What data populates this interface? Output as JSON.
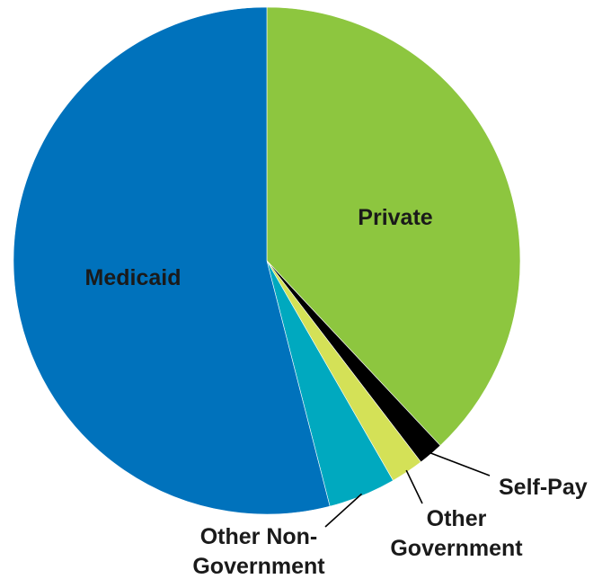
{
  "chart_data": {
    "type": "pie",
    "title": "",
    "unit": "percent",
    "slices": [
      {
        "label": "Private",
        "value": 38.0,
        "color": "#8DC63F"
      },
      {
        "label": "Self-Pay",
        "value": 1.6,
        "color": "#000000"
      },
      {
        "label": "Other Government",
        "value": 2.1,
        "color": "#D4E157"
      },
      {
        "label": "Other Non-Government",
        "value": 4.3,
        "color": "#00A9BF"
      },
      {
        "label": "Medicaid",
        "value": 54.0,
        "color": "#0072BC"
      }
    ],
    "label_lines": {
      "Private": [
        "Private"
      ],
      "Self-Pay": [
        "Self-Pay"
      ],
      "Other Government": [
        "Other",
        "Government"
      ],
      "Other Non-Government": [
        "Other Non-",
        "Government"
      ],
      "Medicaid": [
        "Medicaid"
      ]
    },
    "start_angle": "12 o'clock",
    "direction": "clockwise",
    "legend": "none"
  }
}
